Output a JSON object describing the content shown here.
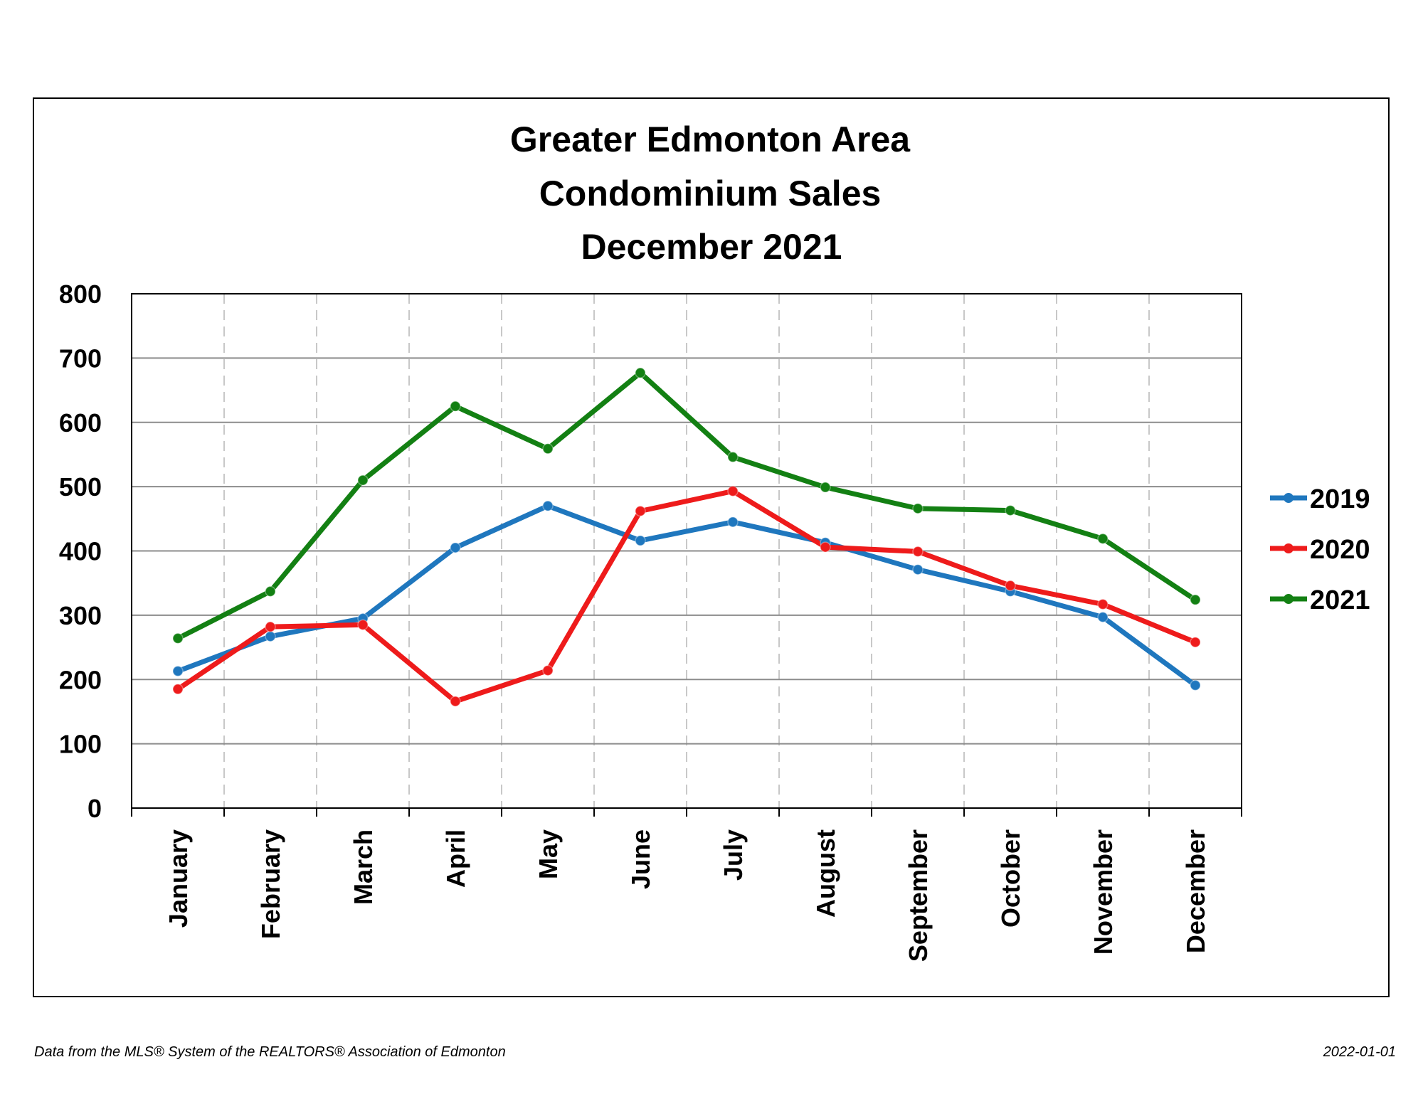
{
  "chart_data": {
    "type": "line",
    "title_lines": [
      "Greater Edmonton Area",
      "Condominium Sales",
      "December 2021"
    ],
    "categories": [
      "January",
      "February",
      "March",
      "April",
      "May",
      "June",
      "July",
      "August",
      "September",
      "October",
      "November",
      "December"
    ],
    "ylim": [
      0,
      800
    ],
    "yticks": [
      0,
      100,
      200,
      300,
      400,
      500,
      600,
      700,
      800
    ],
    "grid": {
      "horizontal": "solid",
      "vertical": "dashed"
    },
    "legend_position": "right",
    "series": [
      {
        "name": "2019",
        "color": "#1F77BE",
        "values": [
          213,
          267,
          295,
          405,
          470,
          416,
          445,
          413,
          371,
          337,
          297,
          191
        ]
      },
      {
        "name": "2020",
        "color": "#EE1B1B",
        "values": [
          185,
          282,
          285,
          166,
          214,
          462,
          493,
          406,
          399,
          346,
          317,
          258
        ]
      },
      {
        "name": "2021",
        "color": "#138013",
        "values": [
          264,
          337,
          510,
          625,
          559,
          677,
          546,
          499,
          466,
          463,
          419,
          324
        ]
      }
    ]
  },
  "footer": {
    "source": "Data from the MLS® System of the REALTORS® Association of Edmonton",
    "date": "2022-01-01"
  }
}
